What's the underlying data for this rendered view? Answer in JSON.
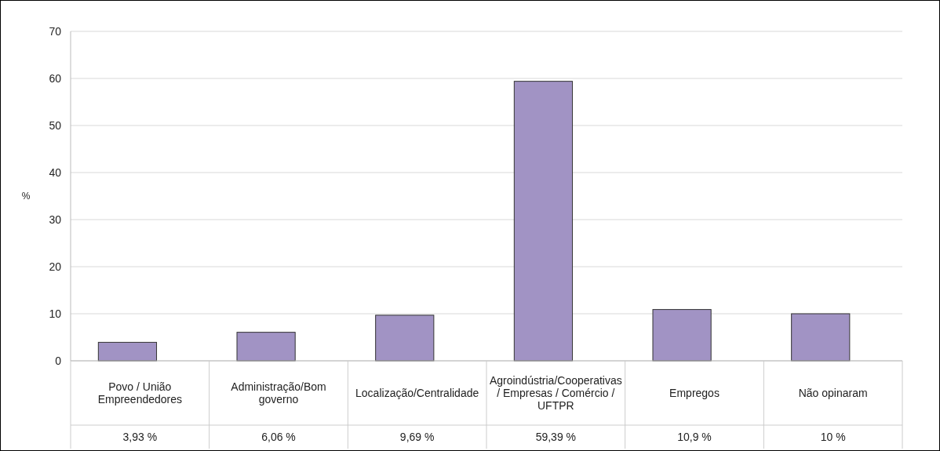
{
  "chart_data": {
    "type": "bar",
    "ylabel": "%",
    "categories": [
      "Povo / União Empreendedores",
      "Administração/Bom governo",
      "Localização/Centralidade",
      "Agroindústria/Cooperativas / Empresas / Comércio / UFTPR",
      "Empregos",
      "Não opinaram"
    ],
    "values": [
      3.93,
      6.06,
      9.69,
      59.39,
      10.9,
      10
    ],
    "value_labels": [
      "3,93 %",
      "6,06 %",
      "9,69 %",
      "59,39 %",
      "10,9 %",
      "10 %"
    ],
    "color": "#a193c4",
    "ylim": [
      0,
      70
    ],
    "yticks": [
      0,
      10,
      20,
      30,
      40,
      50,
      60,
      70
    ],
    "grid": "y"
  }
}
